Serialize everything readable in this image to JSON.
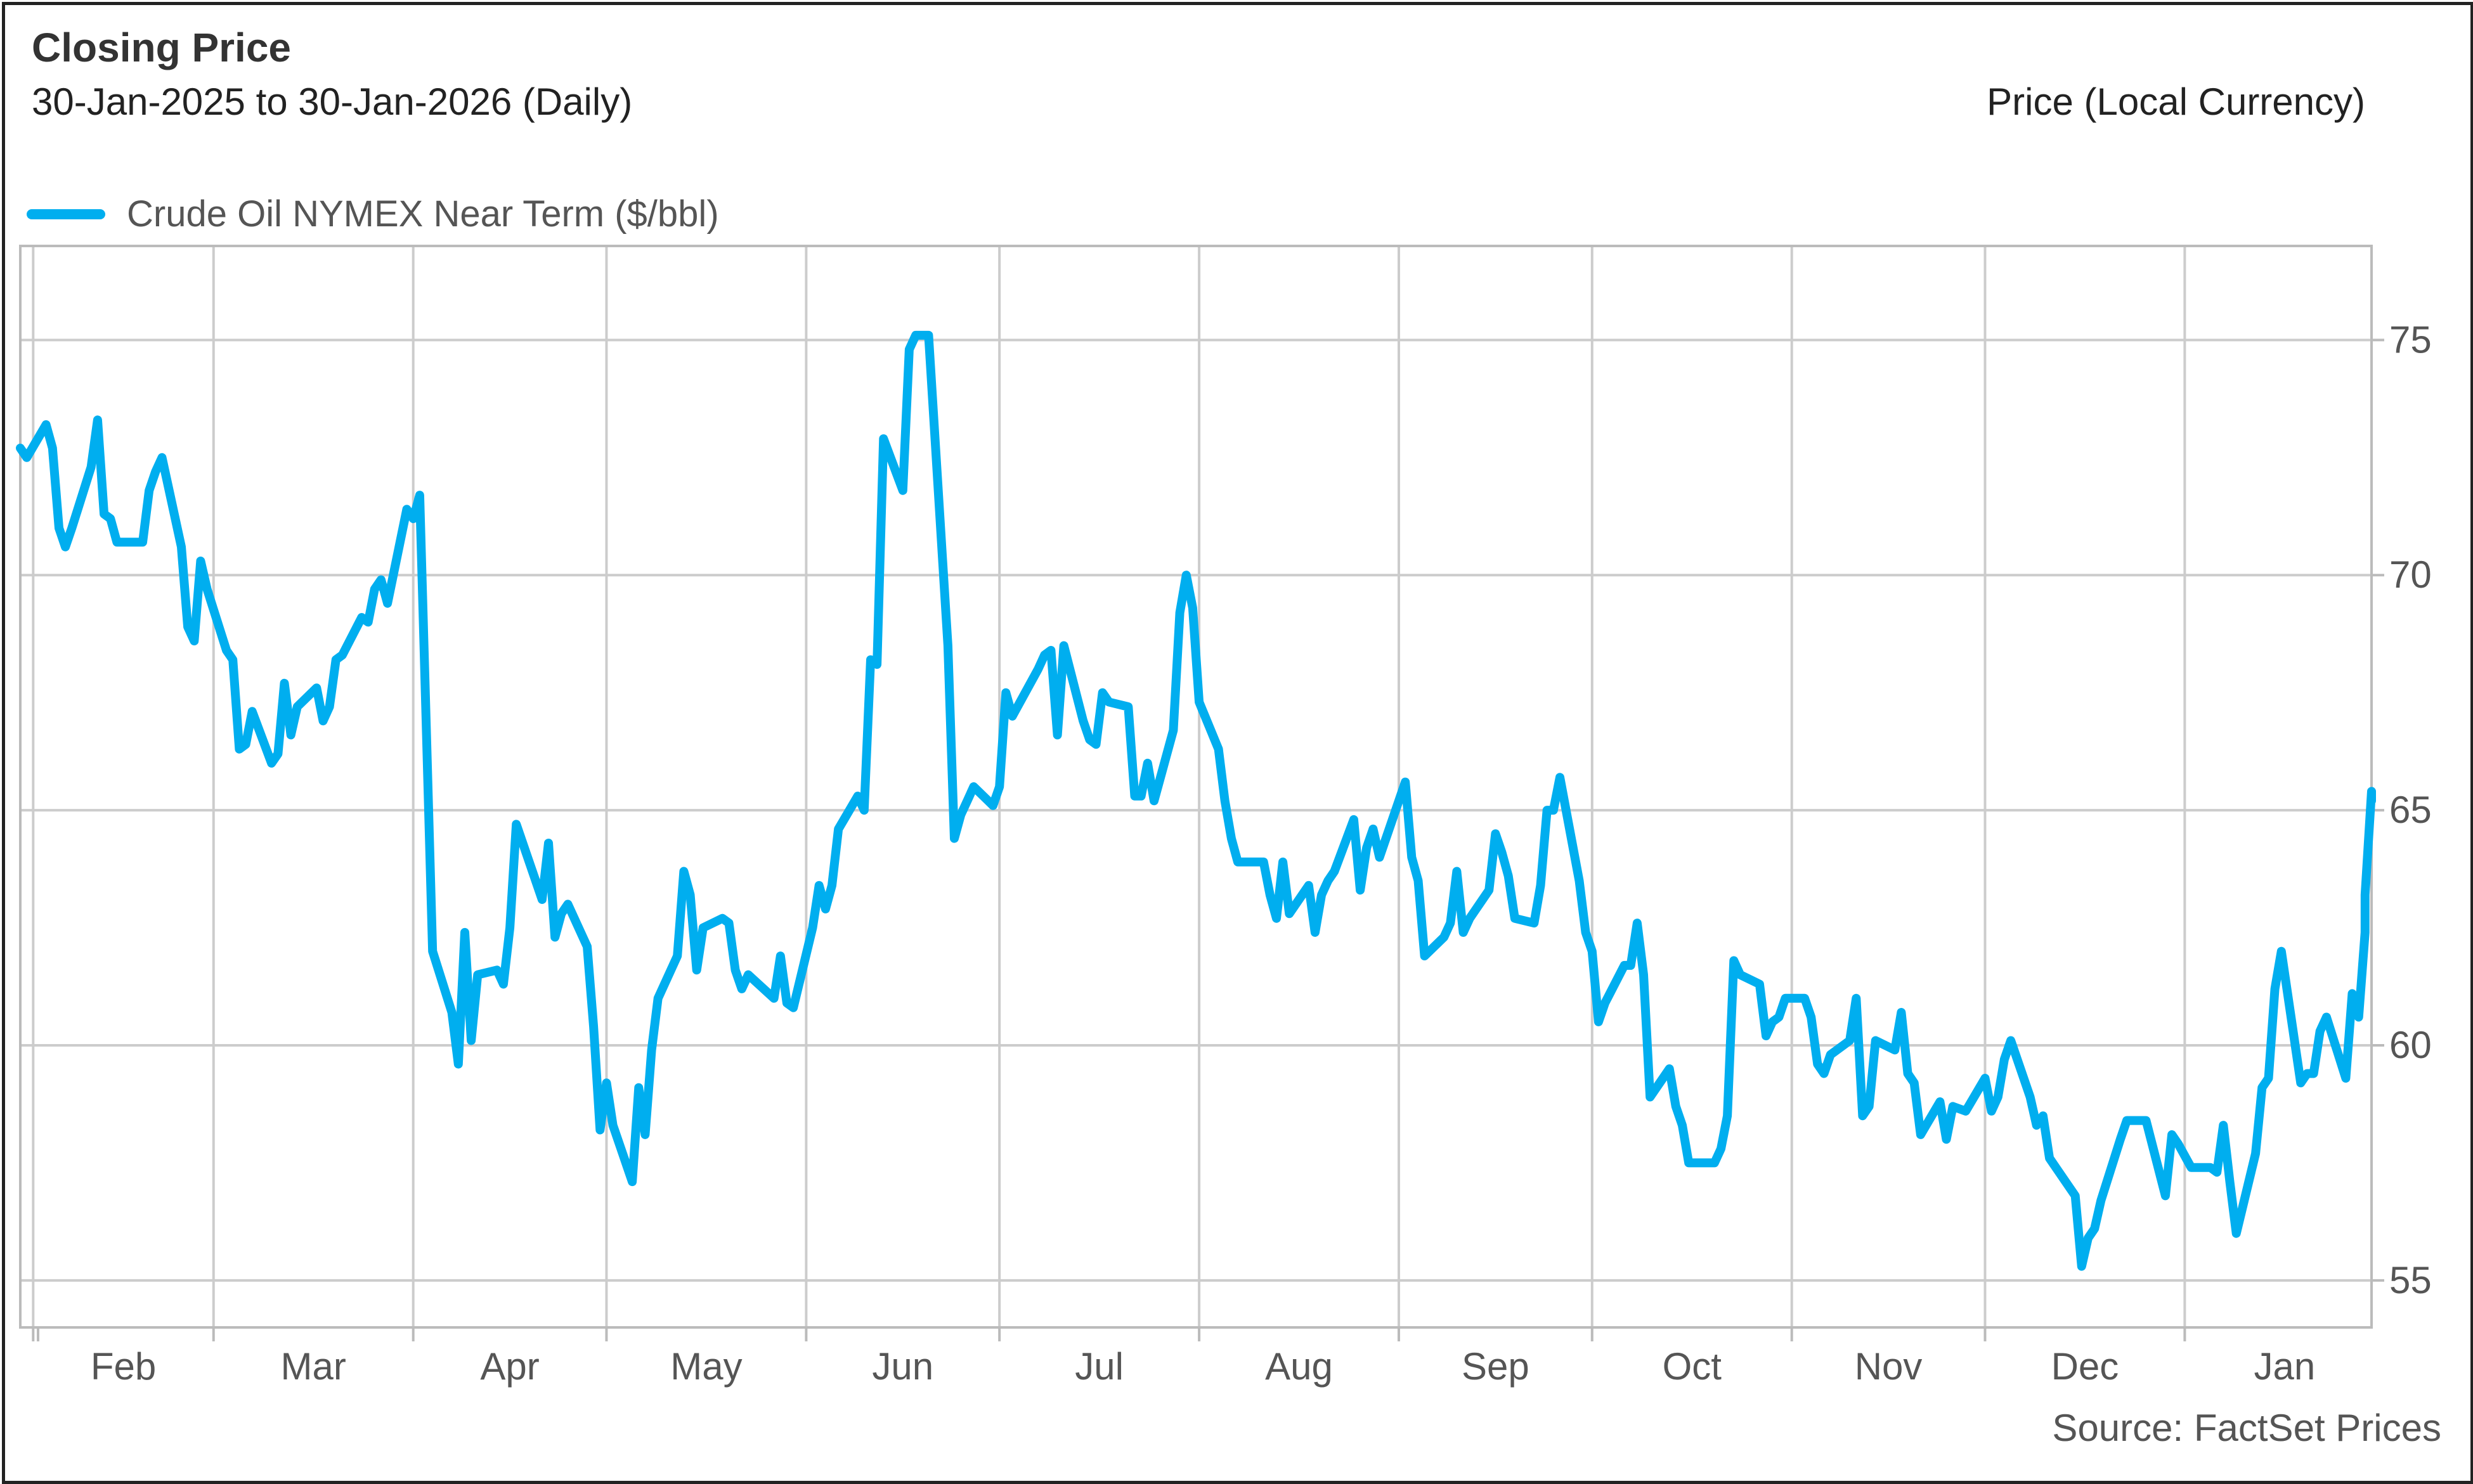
{
  "header": {
    "title": "Closing Price",
    "subtitle": "30-Jan-2025 to 30-Jan-2026 (Daily)",
    "axis_title": "Price (Local Currency)"
  },
  "footer": {
    "source": "Source: FactSet Prices"
  },
  "colors": {
    "series": "#00AEEF",
    "grid": "#CCCCCC",
    "axis": "#BBBBBB",
    "text": "#555555"
  },
  "chart_data": {
    "type": "line",
    "title": "Closing Price",
    "subtitle": "30-Jan-2025 to 30-Jan-2026 (Daily)",
    "ylabel": "Price (Local Currency)",
    "xlabel": "",
    "ylim": [
      54,
      77
    ],
    "y_ticks": [
      55,
      60,
      65,
      70,
      75
    ],
    "xlim": [
      "2025-01-30",
      "2026-01-30"
    ],
    "x_ticks": [
      {
        "label": "Feb",
        "date": "2025-02-01"
      },
      {
        "label": "Mar",
        "date": "2025-03-01"
      },
      {
        "label": "Apr",
        "date": "2025-04-01"
      },
      {
        "label": "May",
        "date": "2025-05-01"
      },
      {
        "label": "Jun",
        "date": "2025-06-01"
      },
      {
        "label": "Jul",
        "date": "2025-07-01"
      },
      {
        "label": "Aug",
        "date": "2025-08-01"
      },
      {
        "label": "Sep",
        "date": "2025-09-01"
      },
      {
        "label": "Oct",
        "date": "2025-10-01"
      },
      {
        "label": "Nov",
        "date": "2025-11-01"
      },
      {
        "label": "Dec",
        "date": "2025-12-01"
      },
      {
        "label": "Jan",
        "date": "2026-01-01"
      }
    ],
    "x_tick_label_position": "mid-month",
    "grid": true,
    "legend_position": "top-left",
    "series": [
      {
        "name": "Crude Oil NYMEX Near Term ($/bbl)",
        "color": "#00AEEF",
        "points": [
          [
            "2025-01-30",
            72.7
          ],
          [
            "2025-01-31",
            72.5
          ],
          [
            "2025-02-03",
            73.2
          ],
          [
            "2025-02-04",
            72.7
          ],
          [
            "2025-02-05",
            71.0
          ],
          [
            "2025-02-06",
            70.6
          ],
          [
            "2025-02-07",
            71.0
          ],
          [
            "2025-02-10",
            72.3
          ],
          [
            "2025-02-11",
            73.3
          ],
          [
            "2025-02-12",
            71.3
          ],
          [
            "2025-02-13",
            71.2
          ],
          [
            "2025-02-14",
            70.7
          ],
          [
            "2025-02-18",
            70.7
          ],
          [
            "2025-02-19",
            71.8
          ],
          [
            "2025-02-20",
            72.2
          ],
          [
            "2025-02-21",
            72.5
          ],
          [
            "2025-02-24",
            70.6
          ],
          [
            "2025-02-25",
            68.9
          ],
          [
            "2025-02-26",
            68.6
          ],
          [
            "2025-02-27",
            70.3
          ],
          [
            "2025-02-28",
            69.7
          ],
          [
            "2025-03-03",
            68.4
          ],
          [
            "2025-03-04",
            68.2
          ],
          [
            "2025-03-05",
            66.3
          ],
          [
            "2025-03-06",
            66.4
          ],
          [
            "2025-03-07",
            67.1
          ],
          [
            "2025-03-10",
            66.0
          ],
          [
            "2025-03-11",
            66.2
          ],
          [
            "2025-03-12",
            67.7
          ],
          [
            "2025-03-13",
            66.6
          ],
          [
            "2025-03-14",
            67.2
          ],
          [
            "2025-03-17",
            67.6
          ],
          [
            "2025-03-18",
            66.9
          ],
          [
            "2025-03-19",
            67.2
          ],
          [
            "2025-03-20",
            68.2
          ],
          [
            "2025-03-21",
            68.3
          ],
          [
            "2025-03-24",
            69.1
          ],
          [
            "2025-03-25",
            69.0
          ],
          [
            "2025-03-26",
            69.7
          ],
          [
            "2025-03-27",
            69.9
          ],
          [
            "2025-03-28",
            69.4
          ],
          [
            "2025-03-31",
            71.4
          ],
          [
            "2025-04-01",
            71.2
          ],
          [
            "2025-04-02",
            71.7
          ],
          [
            "2025-04-03",
            66.9
          ],
          [
            "2025-04-04",
            62.0
          ],
          [
            "2025-04-07",
            60.7
          ],
          [
            "2025-04-08",
            59.6
          ],
          [
            "2025-04-09",
            62.4
          ],
          [
            "2025-04-10",
            60.1
          ],
          [
            "2025-04-11",
            61.5
          ],
          [
            "2025-04-14",
            61.6
          ],
          [
            "2025-04-15",
            61.3
          ],
          [
            "2025-04-16",
            62.5
          ],
          [
            "2025-04-17",
            64.7
          ],
          [
            "2025-04-21",
            63.1
          ],
          [
            "2025-04-22",
            64.3
          ],
          [
            "2025-04-23",
            62.3
          ],
          [
            "2025-04-24",
            62.8
          ],
          [
            "2025-04-25",
            63.0
          ],
          [
            "2025-04-28",
            62.1
          ],
          [
            "2025-04-29",
            60.4
          ],
          [
            "2025-04-30",
            58.2
          ],
          [
            "2025-05-01",
            59.2
          ],
          [
            "2025-05-02",
            58.3
          ],
          [
            "2025-05-05",
            57.1
          ],
          [
            "2025-05-06",
            59.1
          ],
          [
            "2025-05-07",
            58.1
          ],
          [
            "2025-05-08",
            59.9
          ],
          [
            "2025-05-09",
            61.0
          ],
          [
            "2025-05-12",
            61.9
          ],
          [
            "2025-05-13",
            63.7
          ],
          [
            "2025-05-14",
            63.2
          ],
          [
            "2025-05-15",
            61.6
          ],
          [
            "2025-05-16",
            62.5
          ],
          [
            "2025-05-19",
            62.7
          ],
          [
            "2025-05-20",
            62.6
          ],
          [
            "2025-05-21",
            61.6
          ],
          [
            "2025-05-22",
            61.2
          ],
          [
            "2025-05-23",
            61.5
          ],
          [
            "2025-05-27",
            61.0
          ],
          [
            "2025-05-28",
            61.9
          ],
          [
            "2025-05-29",
            60.9
          ],
          [
            "2025-05-30",
            60.8
          ],
          [
            "2025-06-02",
            62.5
          ],
          [
            "2025-06-03",
            63.4
          ],
          [
            "2025-06-04",
            62.9
          ],
          [
            "2025-06-05",
            63.4
          ],
          [
            "2025-06-06",
            64.6
          ],
          [
            "2025-06-09",
            65.3
          ],
          [
            "2025-06-10",
            65.0
          ],
          [
            "2025-06-11",
            68.2
          ],
          [
            "2025-06-12",
            68.1
          ],
          [
            "2025-06-13",
            72.9
          ],
          [
            "2025-06-16",
            71.8
          ],
          [
            "2025-06-17",
            74.8
          ],
          [
            "2025-06-18",
            75.1
          ],
          [
            "2025-06-20",
            75.1
          ],
          [
            "2025-06-23",
            68.5
          ],
          [
            "2025-06-24",
            64.4
          ],
          [
            "2025-06-25",
            64.9
          ],
          [
            "2025-06-26",
            65.2
          ],
          [
            "2025-06-27",
            65.5
          ],
          [
            "2025-06-30",
            65.1
          ],
          [
            "2025-07-01",
            65.5
          ],
          [
            "2025-07-02",
            67.5
          ],
          [
            "2025-07-03",
            67.0
          ],
          [
            "2025-07-07",
            68.0
          ],
          [
            "2025-07-08",
            68.3
          ],
          [
            "2025-07-09",
            68.4
          ],
          [
            "2025-07-10",
            66.6
          ],
          [
            "2025-07-11",
            68.5
          ],
          [
            "2025-07-14",
            66.9
          ],
          [
            "2025-07-15",
            66.5
          ],
          [
            "2025-07-16",
            66.4
          ],
          [
            "2025-07-17",
            67.5
          ],
          [
            "2025-07-18",
            67.3
          ],
          [
            "2025-07-21",
            67.2
          ],
          [
            "2025-07-22",
            65.3
          ],
          [
            "2025-07-23",
            65.3
          ],
          [
            "2025-07-24",
            66.0
          ],
          [
            "2025-07-25",
            65.2
          ],
          [
            "2025-07-28",
            66.7
          ],
          [
            "2025-07-29",
            69.2
          ],
          [
            "2025-07-30",
            70.0
          ],
          [
            "2025-07-31",
            69.3
          ],
          [
            "2025-08-01",
            67.3
          ],
          [
            "2025-08-04",
            66.3
          ],
          [
            "2025-08-05",
            65.2
          ],
          [
            "2025-08-06",
            64.4
          ],
          [
            "2025-08-07",
            63.9
          ],
          [
            "2025-08-08",
            63.9
          ],
          [
            "2025-08-11",
            63.9
          ],
          [
            "2025-08-12",
            63.2
          ],
          [
            "2025-08-13",
            62.7
          ],
          [
            "2025-08-14",
            63.9
          ],
          [
            "2025-08-15",
            62.8
          ],
          [
            "2025-08-18",
            63.4
          ],
          [
            "2025-08-19",
            62.4
          ],
          [
            "2025-08-20",
            63.2
          ],
          [
            "2025-08-21",
            63.5
          ],
          [
            "2025-08-22",
            63.7
          ],
          [
            "2025-08-25",
            64.8
          ],
          [
            "2025-08-26",
            63.3
          ],
          [
            "2025-08-27",
            64.2
          ],
          [
            "2025-08-28",
            64.6
          ],
          [
            "2025-08-29",
            64.0
          ],
          [
            "2025-09-02",
            65.6
          ],
          [
            "2025-09-03",
            64.0
          ],
          [
            "2025-09-04",
            63.5
          ],
          [
            "2025-09-05",
            61.9
          ],
          [
            "2025-09-08",
            62.3
          ],
          [
            "2025-09-09",
            62.6
          ],
          [
            "2025-09-10",
            63.7
          ],
          [
            "2025-09-11",
            62.4
          ],
          [
            "2025-09-12",
            62.7
          ],
          [
            "2025-09-15",
            63.3
          ],
          [
            "2025-09-16",
            64.5
          ],
          [
            "2025-09-17",
            64.1
          ],
          [
            "2025-09-18",
            63.6
          ],
          [
            "2025-09-19",
            62.7
          ],
          [
            "2025-09-22",
            62.6
          ],
          [
            "2025-09-23",
            63.4
          ],
          [
            "2025-09-24",
            65.0
          ],
          [
            "2025-09-25",
            65.0
          ],
          [
            "2025-09-26",
            65.7
          ],
          [
            "2025-09-29",
            63.5
          ],
          [
            "2025-09-30",
            62.4
          ],
          [
            "2025-10-01",
            62.0
          ],
          [
            "2025-10-02",
            60.5
          ],
          [
            "2025-10-03",
            60.9
          ],
          [
            "2025-10-06",
            61.7
          ],
          [
            "2025-10-07",
            61.7
          ],
          [
            "2025-10-08",
            62.6
          ],
          [
            "2025-10-09",
            61.5
          ],
          [
            "2025-10-10",
            58.9
          ],
          [
            "2025-10-13",
            59.5
          ],
          [
            "2025-10-14",
            58.7
          ],
          [
            "2025-10-15",
            58.3
          ],
          [
            "2025-10-16",
            57.5
          ],
          [
            "2025-10-17",
            57.5
          ],
          [
            "2025-10-20",
            57.5
          ],
          [
            "2025-10-21",
            57.8
          ],
          [
            "2025-10-22",
            58.5
          ],
          [
            "2025-10-23",
            61.8
          ],
          [
            "2025-10-24",
            61.5
          ],
          [
            "2025-10-27",
            61.3
          ],
          [
            "2025-10-28",
            60.2
          ],
          [
            "2025-10-29",
            60.5
          ],
          [
            "2025-10-30",
            60.6
          ],
          [
            "2025-10-31",
            61.0
          ],
          [
            "2025-11-03",
            61.0
          ],
          [
            "2025-11-04",
            60.6
          ],
          [
            "2025-11-05",
            59.6
          ],
          [
            "2025-11-06",
            59.4
          ],
          [
            "2025-11-07",
            59.8
          ],
          [
            "2025-11-10",
            60.1
          ],
          [
            "2025-11-11",
            61.0
          ],
          [
            "2025-11-12",
            58.5
          ],
          [
            "2025-11-13",
            58.7
          ],
          [
            "2025-11-14",
            60.1
          ],
          [
            "2025-11-17",
            59.9
          ],
          [
            "2025-11-18",
            60.7
          ],
          [
            "2025-11-19",
            59.4
          ],
          [
            "2025-11-20",
            59.2
          ],
          [
            "2025-11-21",
            58.1
          ],
          [
            "2025-11-24",
            58.8
          ],
          [
            "2025-11-25",
            58.0
          ],
          [
            "2025-11-26",
            58.7
          ],
          [
            "2025-11-28",
            58.6
          ],
          [
            "2025-12-01",
            59.3
          ],
          [
            "2025-12-02",
            58.6
          ],
          [
            "2025-12-03",
            58.9
          ],
          [
            "2025-12-04",
            59.7
          ],
          [
            "2025-12-05",
            60.1
          ],
          [
            "2025-12-08",
            58.9
          ],
          [
            "2025-12-09",
            58.3
          ],
          [
            "2025-12-10",
            58.5
          ],
          [
            "2025-12-11",
            57.6
          ],
          [
            "2025-12-12",
            57.4
          ],
          [
            "2025-12-15",
            56.8
          ],
          [
            "2025-12-16",
            55.3
          ],
          [
            "2025-12-17",
            55.9
          ],
          [
            "2025-12-18",
            56.1
          ],
          [
            "2025-12-19",
            56.7
          ],
          [
            "2025-12-22",
            58.0
          ],
          [
            "2025-12-23",
            58.4
          ],
          [
            "2025-12-24",
            58.4
          ],
          [
            "2025-12-26",
            58.4
          ],
          [
            "2025-12-29",
            56.8
          ],
          [
            "2025-12-30",
            58.1
          ],
          [
            "2025-12-31",
            57.9
          ],
          [
            "2026-01-02",
            57.4
          ],
          [
            "2026-01-05",
            57.4
          ],
          [
            "2026-01-06",
            57.3
          ],
          [
            "2026-01-07",
            58.3
          ],
          [
            "2026-01-08",
            57.1
          ],
          [
            "2026-01-09",
            56.0
          ],
          [
            "2026-01-12",
            57.7
          ],
          [
            "2026-01-13",
            59.1
          ],
          [
            "2026-01-14",
            59.3
          ],
          [
            "2026-01-15",
            61.2
          ],
          [
            "2026-01-16",
            62.0
          ],
          [
            "2026-01-19",
            59.2
          ],
          [
            "2026-01-20",
            59.4
          ],
          [
            "2026-01-21",
            59.4
          ],
          [
            "2026-01-22",
            60.3
          ],
          [
            "2026-01-23",
            60.6
          ],
          [
            "2026-01-26",
            59.3
          ],
          [
            "2026-01-27",
            61.1
          ],
          [
            "2026-01-28",
            60.6
          ],
          [
            "2026-01-29",
            62.4
          ],
          [
            "2026-01-29",
            63.2
          ],
          [
            "2026-01-30",
            65.4
          ],
          [
            "2026-01-30",
            65.2
          ]
        ]
      }
    ]
  }
}
